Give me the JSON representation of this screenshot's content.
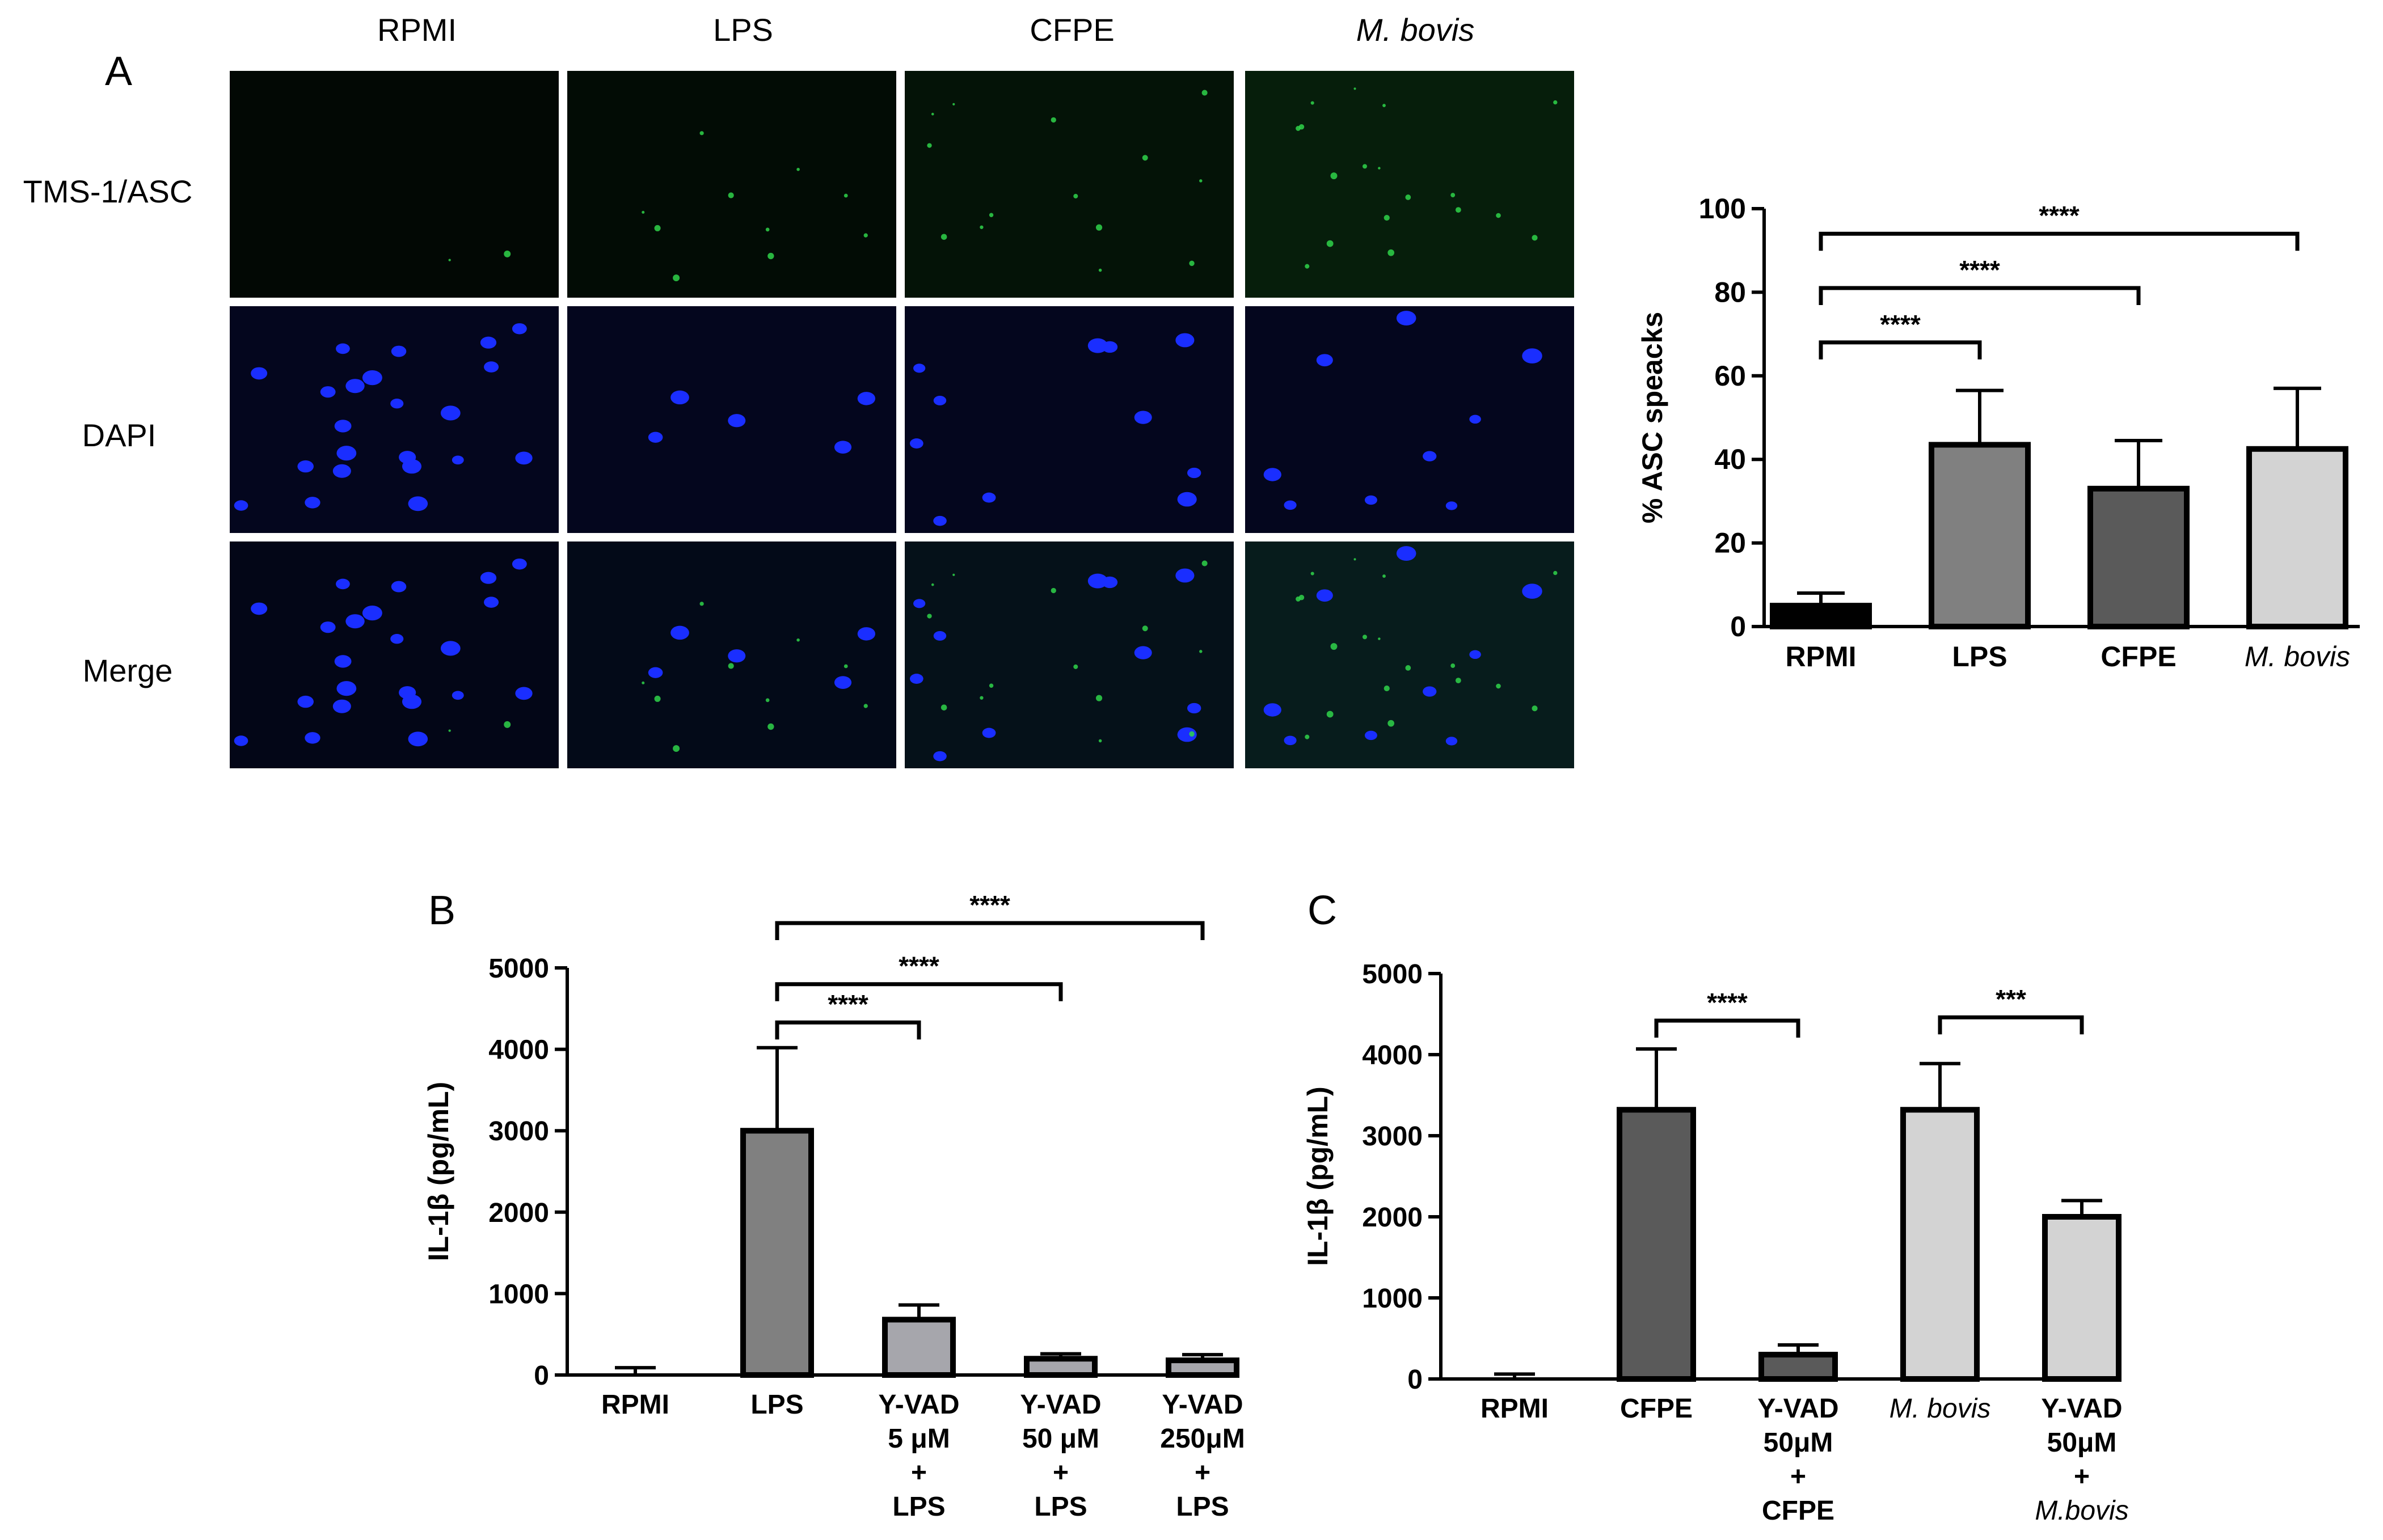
{
  "panel_a": {
    "letter": "A",
    "columns": [
      {
        "label": "RPMI",
        "italic": false
      },
      {
        "label": "LPS",
        "italic": false
      },
      {
        "label": "CFPE",
        "italic": false
      },
      {
        "label": "M. bovis",
        "italic": true
      }
    ],
    "rows": [
      "TMS-1/ASC",
      "DAPI",
      "Merge"
    ],
    "colors": {
      "asc_stain": "#2fd34a",
      "dapi_stain": "#1a2eff",
      "background": "#05070f"
    }
  },
  "panel_b_letter": "B",
  "panel_c_letter": "C",
  "chart_data": [
    {
      "id": "asc_specks",
      "type": "bar",
      "ylabel": "% ASC speacks",
      "ylim": [
        0,
        100
      ],
      "yticks": [
        0,
        20,
        40,
        60,
        80,
        100
      ],
      "categories": [
        {
          "lines": [
            "RPMI"
          ],
          "italic": false
        },
        {
          "lines": [
            "LPS"
          ],
          "italic": false
        },
        {
          "lines": [
            "CFPE"
          ],
          "italic": false
        },
        {
          "lines": [
            "M. bovis"
          ],
          "italic": true
        }
      ],
      "values": [
        5,
        43.5,
        33,
        42.5
      ],
      "errors": [
        3,
        13,
        11.5,
        14.5
      ],
      "colors": [
        "#000000",
        "#808080",
        "#5a5a5a",
        "#d3d3d3"
      ],
      "significance": [
        {
          "from": 0,
          "to": 1,
          "y": 68,
          "label": "****"
        },
        {
          "from": 0,
          "to": 2,
          "y": 81,
          "label": "****"
        },
        {
          "from": 0,
          "to": 3,
          "y": 94,
          "label": "****"
        }
      ]
    },
    {
      "id": "il1b_lps",
      "type": "bar",
      "ylabel": "IL-1β (pg/mL)",
      "ylim": [
        0,
        5000
      ],
      "yticks": [
        0,
        1000,
        2000,
        3000,
        4000,
        5000
      ],
      "categories": [
        {
          "lines": [
            "RPMI"
          ],
          "italic": false
        },
        {
          "lines": [
            "LPS"
          ],
          "italic": false
        },
        {
          "lines": [
            "Y-VAD",
            "5 μM",
            "+",
            "LPS"
          ],
          "italic": false
        },
        {
          "lines": [
            "Y-VAD",
            "50 μM",
            "+",
            "LPS"
          ],
          "italic": false
        },
        {
          "lines": [
            "Y-VAD",
            "250μM",
            "+",
            "LPS"
          ],
          "italic": false
        }
      ],
      "values": [
        0,
        3000,
        680,
        200,
        180
      ],
      "errors": [
        90,
        1020,
        180,
        60,
        70
      ],
      "colors": [
        "#ffffff",
        "#808080",
        "#a6a6ac",
        "#a6a6ac",
        "#a6a6ac"
      ],
      "significance": [
        {
          "from": 1,
          "to": 2,
          "y": 4330,
          "label": "****"
        },
        {
          "from": 1,
          "to": 3,
          "y": 4800,
          "label": "****"
        },
        {
          "from": 1,
          "to": 4,
          "y": 5550,
          "label": "****"
        }
      ]
    },
    {
      "id": "il1b_cfpe_mbovis",
      "type": "bar",
      "ylabel": "IL-1β (pg/mL)",
      "ylim": [
        0,
        5000
      ],
      "yticks": [
        0,
        1000,
        2000,
        3000,
        4000,
        5000
      ],
      "categories": [
        {
          "lines": [
            "RPMI"
          ],
          "italic": false
        },
        {
          "lines": [
            "CFPE"
          ],
          "italic": false
        },
        {
          "lines": [
            "Y-VAD",
            "50μM",
            "+",
            "CFPE"
          ],
          "italic": false
        },
        {
          "lines": [
            "M. bovis"
          ],
          "italic": true
        },
        {
          "lines": [
            "Y-VAD",
            "50μM",
            "+",
            "M.bovis"
          ],
          "italic": false,
          "italic_last": true
        }
      ],
      "values": [
        0,
        3320,
        300,
        3320,
        2000
      ],
      "errors": [
        60,
        750,
        120,
        570,
        200
      ],
      "colors": [
        "#ffffff",
        "#5a5a5a",
        "#5a5a5a",
        "#d3d3d3",
        "#d3d3d3"
      ],
      "significance": [
        {
          "from": 1,
          "to": 2,
          "y": 4420,
          "label": "****"
        },
        {
          "from": 3,
          "to": 4,
          "y": 4460,
          "label": "***"
        }
      ]
    }
  ]
}
